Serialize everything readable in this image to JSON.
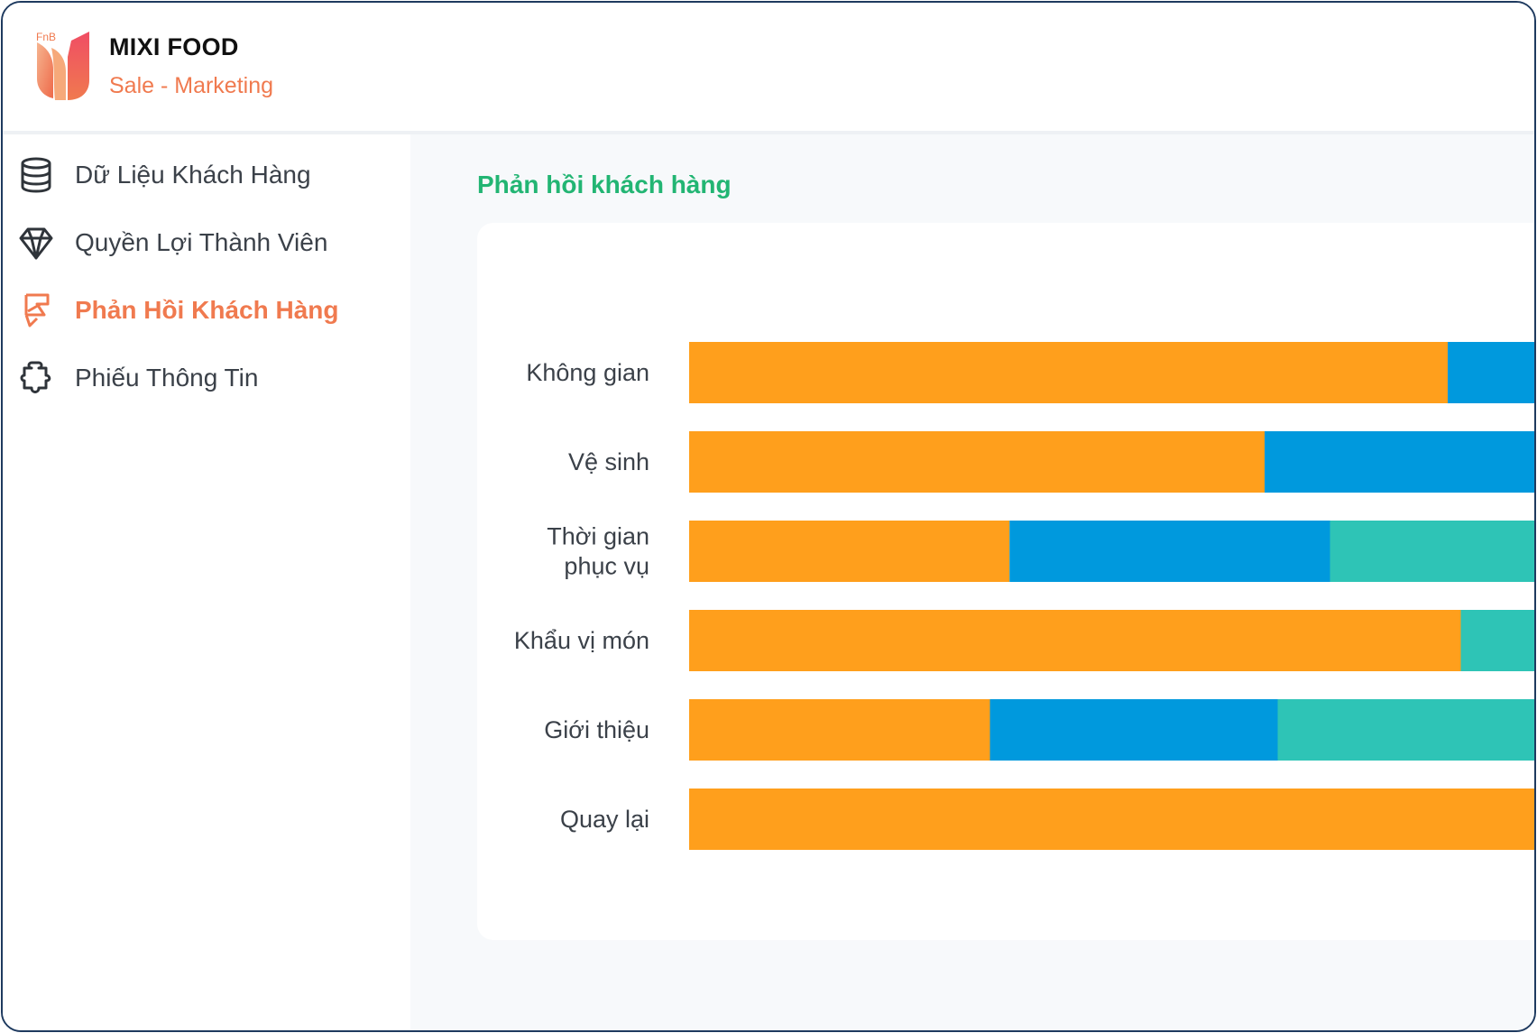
{
  "app": {
    "logo_text": "FnB",
    "name": "MIXI FOOD",
    "subtitle": "Sale - Marketing",
    "brand_color": "#f07a4f"
  },
  "sidebar": {
    "items": [
      {
        "label": "Dữ Liệu Khách Hàng",
        "icon": "database-icon",
        "active": false
      },
      {
        "label": "Quyền Lợi Thành Viên",
        "icon": "diamond-icon",
        "active": false
      },
      {
        "label": "Phản Hồi Khách Hàng",
        "icon": "feedback-flag-icon",
        "active": true
      },
      {
        "label": "Phiếu Thông Tin",
        "icon": "puzzle-icon",
        "active": false
      }
    ]
  },
  "main": {
    "section_title": "Phản hồi khách hàng",
    "title_color": "#22b573"
  },
  "chart_data": {
    "type": "bar",
    "orientation": "horizontal",
    "stacked": true,
    "categories": [
      [
        "Không gian"
      ],
      [
        "Vệ sinh"
      ],
      [
        "Thời gian",
        "phục vụ"
      ],
      [
        "Khẩu vị món"
      ],
      [
        "Giới thiệu"
      ],
      [
        "Quay lại"
      ]
    ],
    "series": [
      {
        "color": "#ff9f1c",
        "values": [
          58,
          44,
          24.5,
          59,
          23,
          70
        ]
      },
      {
        "color": "#0099dd",
        "values": [
          12,
          26,
          24.5,
          0,
          22,
          0
        ]
      },
      {
        "color": "#2ec4b6",
        "values": [
          0,
          0,
          21,
          11,
          25,
          0
        ]
      }
    ],
    "xlim": [
      0,
      100
    ],
    "grid": false,
    "legend": "none",
    "note": "chart cropped at right edge of screenshot"
  }
}
